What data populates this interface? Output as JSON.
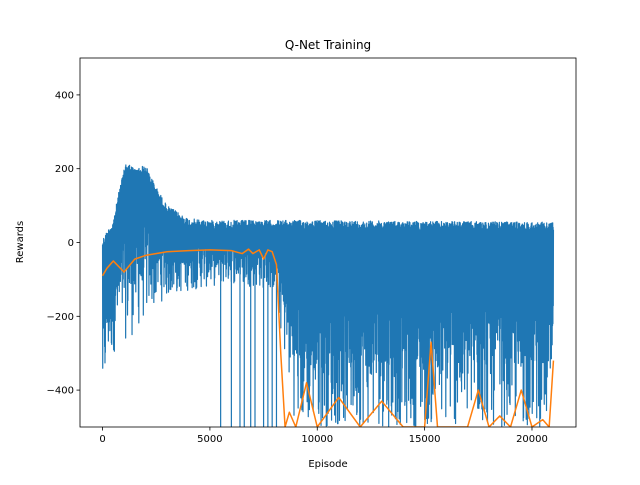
{
  "chart_data": {
    "type": "line",
    "title": "Q-Net Training",
    "xlabel": "Episode",
    "ylabel": "Rewards",
    "xlim": [
      -1050,
      22050
    ],
    "ylim": [
      -500,
      500
    ],
    "xticks": [
      0,
      5000,
      10000,
      15000,
      20000
    ],
    "yticks": [
      -400,
      -200,
      0,
      200,
      400
    ],
    "grid": false,
    "colors": {
      "episode_rewards": "#1f77b4",
      "moving_average": "#ff7f0e"
    },
    "series": [
      {
        "key": "episode_rewards",
        "style": "dense-noisy",
        "x_range": [
          0,
          21000
        ],
        "envelope": [
          {
            "x": 0,
            "upper": 10,
            "lower": -500
          },
          {
            "x": 200,
            "upper": 30,
            "lower": -340
          },
          {
            "x": 500,
            "upper": 60,
            "lower": -300
          },
          {
            "x": 800,
            "upper": 150,
            "lower": -280
          },
          {
            "x": 1100,
            "upper": 220,
            "lower": -260
          },
          {
            "x": 1500,
            "upper": 200,
            "lower": -250
          },
          {
            "x": 2000,
            "upper": 210,
            "lower": -200
          },
          {
            "x": 2500,
            "upper": 150,
            "lower": -170
          },
          {
            "x": 3000,
            "upper": 100,
            "lower": -150
          },
          {
            "x": 4000,
            "upper": 65,
            "lower": -130
          },
          {
            "x": 5000,
            "upper": 60,
            "lower": -120
          },
          {
            "x": 6000,
            "upper": 60,
            "lower": -110
          },
          {
            "x": 7000,
            "upper": 60,
            "lower": -120
          },
          {
            "x": 8000,
            "upper": 60,
            "lower": -130
          },
          {
            "x": 9000,
            "upper": 60,
            "lower": -500
          },
          {
            "x": 21000,
            "upper": 55,
            "lower": -500
          }
        ],
        "deep_spikes_x": [
          5500,
          6000,
          6400,
          6600,
          6900,
          7100,
          7500,
          7700,
          7900,
          8100
        ]
      },
      {
        "key": "moving_average",
        "x": [
          0,
          200,
          500,
          1000,
          1500,
          2000,
          3000,
          4000,
          5000,
          6000,
          6500,
          6800,
          7000,
          7300,
          7500,
          7700,
          7900,
          8100,
          8300,
          8500,
          8700,
          9000,
          9500,
          10000,
          11000,
          12000,
          13000,
          14000,
          15000,
          15300,
          15600,
          16000,
          17000,
          17500,
          18000,
          18500,
          19000,
          19500,
          20000,
          20500,
          20800,
          21000
        ],
        "y": [
          -90,
          -70,
          -50,
          -80,
          -45,
          -35,
          -25,
          -22,
          -20,
          -22,
          -30,
          -18,
          -30,
          -20,
          -45,
          -20,
          -25,
          -60,
          -300,
          -500,
          -460,
          -500,
          -380,
          -500,
          -420,
          -500,
          -430,
          -500,
          -500,
          -270,
          -500,
          -500,
          -500,
          -400,
          -500,
          -470,
          -500,
          -400,
          -500,
          -480,
          -500,
          -320
        ]
      }
    ]
  }
}
